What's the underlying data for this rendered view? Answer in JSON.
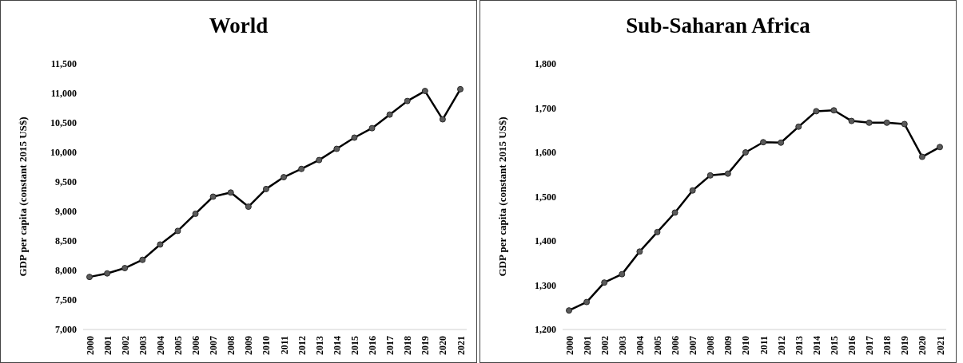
{
  "chart_data": [
    {
      "type": "line",
      "title": "World",
      "ylabel": "GDP per capita (constant 2015 US$)",
      "categories": [
        "2000",
        "2001",
        "2002",
        "2003",
        "2004",
        "2005",
        "2006",
        "2007",
        "2008",
        "2009",
        "2010",
        "2011",
        "2012",
        "2013",
        "2014",
        "2015",
        "2016",
        "2017",
        "2018",
        "2019",
        "2020",
        "2021"
      ],
      "series": [
        {
          "color": "#000000",
          "values": [
            7890,
            7950,
            8040,
            8180,
            8440,
            8670,
            8960,
            9250,
            9320,
            9080,
            9380,
            9580,
            9720,
            9870,
            10060,
            10250,
            10410,
            10640,
            10870,
            11040,
            10560,
            11070
          ]
        }
      ],
      "ylim": [
        7000,
        11500
      ],
      "yticks": [
        {
          "value": 7000,
          "label": "7,000"
        },
        {
          "value": 7500,
          "label": "7,500"
        },
        {
          "value": 8000,
          "label": "8,000"
        },
        {
          "value": 8500,
          "label": "8,500"
        },
        {
          "value": 9000,
          "label": "9,000"
        },
        {
          "value": 9500,
          "label": "9,500"
        },
        {
          "value": 10000,
          "label": "10,000"
        },
        {
          "value": 10500,
          "label": "10,500"
        },
        {
          "value": 11000,
          "label": "11,000"
        },
        {
          "value": 11500,
          "label": "11,500"
        }
      ],
      "marker": "circle",
      "line_style": "solid"
    },
    {
      "type": "line",
      "title": "Sub-Saharan Africa",
      "ylabel": "GDP per capita (constant 2015 US$)",
      "categories": [
        "2000",
        "2001",
        "2002",
        "2003",
        "2004",
        "2005",
        "2006",
        "2007",
        "2008",
        "2009",
        "2010",
        "2011",
        "2012",
        "2013",
        "2014",
        "2015",
        "2016",
        "2017",
        "2018",
        "2019",
        "2020",
        "2021"
      ],
      "series": [
        {
          "color": "#000000",
          "values": [
            1243,
            1262,
            1306,
            1325,
            1376,
            1420,
            1464,
            1514,
            1548,
            1552,
            1600,
            1623,
            1622,
            1658,
            1693,
            1695,
            1671,
            1667,
            1667,
            1664,
            1590,
            1612
          ]
        }
      ],
      "ylim": [
        1200,
        1800
      ],
      "yticks": [
        {
          "value": 1200,
          "label": "1,200"
        },
        {
          "value": 1300,
          "label": "1,300"
        },
        {
          "value": 1400,
          "label": "1,400"
        },
        {
          "value": 1500,
          "label": "1,500"
        },
        {
          "value": 1600,
          "label": "1,600"
        },
        {
          "value": 1700,
          "label": "1,700"
        },
        {
          "value": 1800,
          "label": "1,800"
        }
      ],
      "marker": "circle",
      "line_style": "solid"
    }
  ]
}
